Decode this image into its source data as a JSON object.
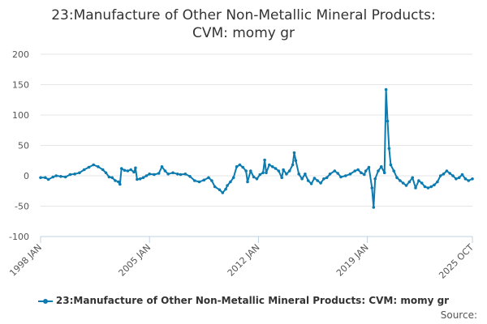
{
  "chart_data": {
    "type": "line",
    "title": [
      "23:Manufacture of Other Non-Metallic Mineral Products:",
      "CVM: momy gr"
    ],
    "xlabel": "",
    "ylabel": "",
    "ylim": [
      -100,
      200
    ],
    "yticks": [
      -100,
      -50,
      0,
      50,
      100,
      150,
      200
    ],
    "x_range": [
      1998.0,
      2025.75
    ],
    "xticks": [
      {
        "value": 1998.0,
        "label": "1998 JAN"
      },
      {
        "value": 2005.0,
        "label": "2005 JAN"
      },
      {
        "value": 2012.0,
        "label": "2012 JAN"
      },
      {
        "value": 2019.0,
        "label": "2019 JAN"
      },
      {
        "value": 2025.75,
        "label": "2025 OCT"
      }
    ],
    "grid": true,
    "legend_position": "bottom",
    "series": [
      {
        "name": "23:Manufacture of Other Non-Metallic Mineral Products: CVM: momy gr",
        "color": "#0c7bb0",
        "points": [
          [
            1998.0,
            -3
          ],
          [
            1998.3,
            -3
          ],
          [
            1998.5,
            -6
          ],
          [
            1998.8,
            -2
          ],
          [
            1999.0,
            0
          ],
          [
            1999.3,
            -1
          ],
          [
            1999.6,
            -2
          ],
          [
            1999.9,
            2
          ],
          [
            2000.2,
            3
          ],
          [
            2000.5,
            5
          ],
          [
            2000.8,
            10
          ],
          [
            2001.1,
            14
          ],
          [
            2001.4,
            18
          ],
          [
            2001.7,
            15
          ],
          [
            2002.0,
            10
          ],
          [
            2002.2,
            5
          ],
          [
            2002.4,
            -2
          ],
          [
            2002.6,
            -3
          ],
          [
            2002.8,
            -8
          ],
          [
            2003.0,
            -10
          ],
          [
            2003.1,
            -14
          ],
          [
            2003.2,
            12
          ],
          [
            2003.4,
            9
          ],
          [
            2003.6,
            8
          ],
          [
            2003.8,
            10
          ],
          [
            2004.0,
            6
          ],
          [
            2004.1,
            13
          ],
          [
            2004.2,
            -6
          ],
          [
            2004.4,
            -5
          ],
          [
            2004.6,
            -3
          ],
          [
            2004.8,
            0
          ],
          [
            2005.0,
            3
          ],
          [
            2005.3,
            2
          ],
          [
            2005.6,
            4
          ],
          [
            2005.8,
            15
          ],
          [
            2006.0,
            8
          ],
          [
            2006.2,
            3
          ],
          [
            2006.5,
            5
          ],
          [
            2006.8,
            3
          ],
          [
            2007.0,
            2
          ],
          [
            2007.3,
            3
          ],
          [
            2007.6,
            -1
          ],
          [
            2007.9,
            -8
          ],
          [
            2008.2,
            -10
          ],
          [
            2008.5,
            -7
          ],
          [
            2008.8,
            -3
          ],
          [
            2009.0,
            -8
          ],
          [
            2009.2,
            -18
          ],
          [
            2009.5,
            -23
          ],
          [
            2009.7,
            -28
          ],
          [
            2009.9,
            -22
          ],
          [
            2010.0,
            -16
          ],
          [
            2010.2,
            -10
          ],
          [
            2010.4,
            -3
          ],
          [
            2010.6,
            15
          ],
          [
            2010.8,
            18
          ],
          [
            2011.0,
            14
          ],
          [
            2011.2,
            8
          ],
          [
            2011.3,
            -10
          ],
          [
            2011.5,
            8
          ],
          [
            2011.7,
            -2
          ],
          [
            2011.9,
            -5
          ],
          [
            2012.1,
            2
          ],
          [
            2012.3,
            5
          ],
          [
            2012.4,
            26
          ],
          [
            2012.5,
            5
          ],
          [
            2012.7,
            18
          ],
          [
            2012.9,
            15
          ],
          [
            2013.1,
            12
          ],
          [
            2013.3,
            8
          ],
          [
            2013.5,
            -3
          ],
          [
            2013.6,
            10
          ],
          [
            2013.8,
            3
          ],
          [
            2014.0,
            8
          ],
          [
            2014.2,
            18
          ],
          [
            2014.3,
            38
          ],
          [
            2014.4,
            25
          ],
          [
            2014.6,
            3
          ],
          [
            2014.8,
            -5
          ],
          [
            2015.0,
            3
          ],
          [
            2015.2,
            -8
          ],
          [
            2015.4,
            -13
          ],
          [
            2015.6,
            -4
          ],
          [
            2015.8,
            -8
          ],
          [
            2016.0,
            -12
          ],
          [
            2016.2,
            -5
          ],
          [
            2016.4,
            -3
          ],
          [
            2016.6,
            3
          ],
          [
            2016.9,
            8
          ],
          [
            2017.1,
            4
          ],
          [
            2017.3,
            -2
          ],
          [
            2017.6,
            0
          ],
          [
            2017.9,
            3
          ],
          [
            2018.2,
            8
          ],
          [
            2018.4,
            10
          ],
          [
            2018.6,
            5
          ],
          [
            2018.8,
            2
          ],
          [
            2018.9,
            8
          ],
          [
            2019.1,
            14
          ],
          [
            2019.3,
            -20
          ],
          [
            2019.4,
            -52
          ],
          [
            2019.5,
            -5
          ],
          [
            2019.7,
            8
          ],
          [
            2019.9,
            15
          ],
          [
            2020.1,
            5
          ],
          [
            2020.2,
            142
          ],
          [
            2020.3,
            90
          ],
          [
            2020.4,
            45
          ],
          [
            2020.5,
            18
          ],
          [
            2020.7,
            8
          ],
          [
            2020.9,
            -3
          ],
          [
            2021.1,
            -8
          ],
          [
            2021.3,
            -12
          ],
          [
            2021.5,
            -16
          ],
          [
            2021.7,
            -10
          ],
          [
            2021.9,
            -3
          ],
          [
            2022.1,
            -20
          ],
          [
            2022.3,
            -8
          ],
          [
            2022.5,
            -12
          ],
          [
            2022.7,
            -18
          ],
          [
            2022.9,
            -20
          ],
          [
            2023.1,
            -18
          ],
          [
            2023.3,
            -15
          ],
          [
            2023.5,
            -10
          ],
          [
            2023.7,
            0
          ],
          [
            2023.9,
            3
          ],
          [
            2024.1,
            8
          ],
          [
            2024.3,
            4
          ],
          [
            2024.5,
            0
          ],
          [
            2024.7,
            -5
          ],
          [
            2024.9,
            -3
          ],
          [
            2025.1,
            2
          ],
          [
            2025.3,
            -5
          ],
          [
            2025.5,
            -8
          ],
          [
            2025.75,
            -5
          ]
        ]
      }
    ],
    "source_label": "Source:"
  }
}
